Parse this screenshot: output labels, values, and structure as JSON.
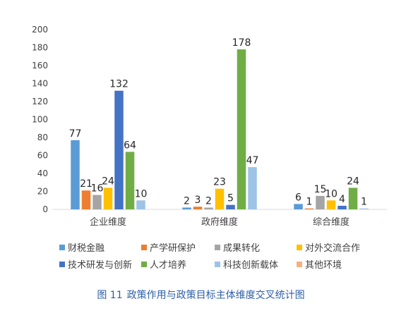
{
  "chart_data": {
    "type": "bar",
    "categories": [
      "企业维度",
      "政府维度",
      "综合维度"
    ],
    "series": [
      {
        "name": "财税金融",
        "color": "#5b9bd5",
        "values": [
          77,
          2,
          6
        ]
      },
      {
        "name": "产学研保护",
        "color": "#ed7d31",
        "values": [
          21,
          3,
          1
        ]
      },
      {
        "name": "成果转化",
        "color": "#a5a5a5",
        "values": [
          16,
          2,
          15
        ]
      },
      {
        "name": "对外交流合作",
        "color": "#ffc000",
        "values": [
          24,
          23,
          10
        ]
      },
      {
        "name": "技术研发与创新",
        "color": "#4472c4",
        "values": [
          132,
          5,
          4
        ]
      },
      {
        "name": "人才培养",
        "color": "#70ad47",
        "values": [
          64,
          178,
          24
        ]
      },
      {
        "name": "科技创新载体",
        "color": "#9dc3e6",
        "values": [
          10,
          47,
          1
        ]
      },
      {
        "name": "其他环境",
        "color": "#f4b183",
        "values": [
          null,
          null,
          null
        ]
      }
    ],
    "title": "",
    "xlabel": "",
    "ylabel": "",
    "ylim": [
      0,
      200
    ],
    "yticks": [
      0,
      20,
      40,
      60,
      80,
      100,
      120,
      140,
      160,
      180,
      200
    ],
    "grid": false,
    "legend_position": "bottom"
  },
  "caption": {
    "number": "图 11",
    "text": "政策作用与政策目标主体维度交叉统计图"
  }
}
